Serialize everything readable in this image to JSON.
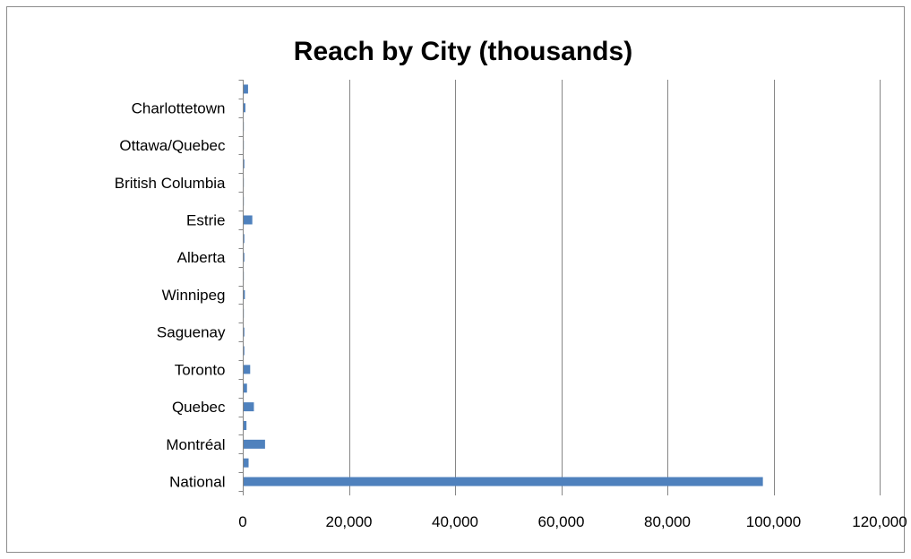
{
  "chart_data": {
    "type": "bar",
    "orientation": "horizontal",
    "title": "Reach by City (thousands)",
    "xlabel": "",
    "ylabel": "",
    "xlim": [
      0,
      120000
    ],
    "x_ticks": [
      0,
      20000,
      40000,
      60000,
      80000,
      100000,
      120000
    ],
    "x_tick_labels": [
      "0",
      "20,000",
      "40,000",
      "60,000",
      "80,000",
      "100,000",
      "120,000"
    ],
    "grid": true,
    "legend": "none",
    "bar_color": "#4f81bd",
    "categories": [
      "National",
      "",
      "Montréal",
      "",
      "Quebec",
      "",
      "Toronto",
      "",
      "Saguenay",
      "",
      "Winnipeg",
      "",
      "Alberta",
      "",
      "Estrie",
      "",
      "British Columbia",
      "",
      "Ottawa/Quebec",
      "",
      "Charlottetown",
      ""
    ],
    "values": [
      98000,
      1100,
      4200,
      700,
      2100,
      800,
      1400,
      300,
      300,
      200,
      400,
      200,
      300,
      300,
      1800,
      200,
      200,
      300,
      200,
      200,
      500,
      1000
    ]
  }
}
